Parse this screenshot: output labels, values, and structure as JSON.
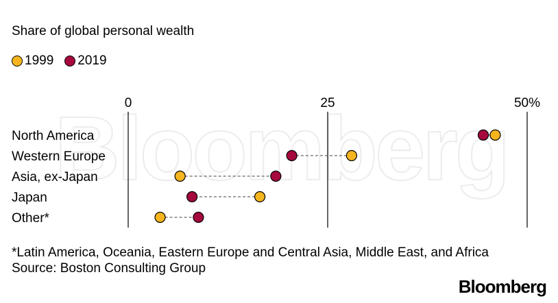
{
  "title": "Share of global personal wealth",
  "legend": [
    {
      "label": "1999",
      "color": "#F6B51F"
    },
    {
      "label": "2019",
      "color": "#A5093D"
    }
  ],
  "watermark": "Bloomberg",
  "footnote": "*Latin America, Oceania, Eastern Europe and Central Asia, Middle East, and Africa",
  "source": "Source: Boston Consulting Group",
  "brand": "Bloomberg",
  "chart_data": {
    "type": "dot",
    "title": "Share of global personal wealth",
    "xlim": [
      0,
      50
    ],
    "xticks": [
      {
        "value": 0,
        "label": "0"
      },
      {
        "value": 25,
        "label": "25"
      },
      {
        "value": 50,
        "label": "50%"
      }
    ],
    "categories": [
      "North America",
      "Western Europe",
      "Asia, ex-Japan",
      "Japan",
      "Other*"
    ],
    "series": [
      {
        "name": "1999",
        "color": "#F6B51F",
        "values": [
          46,
          28,
          6.5,
          16.5,
          4
        ]
      },
      {
        "name": "2019",
        "color": "#A5093D",
        "values": [
          44.5,
          20.5,
          18.5,
          8,
          8.8
        ]
      }
    ],
    "legend_position": "top-left",
    "grid": true
  }
}
